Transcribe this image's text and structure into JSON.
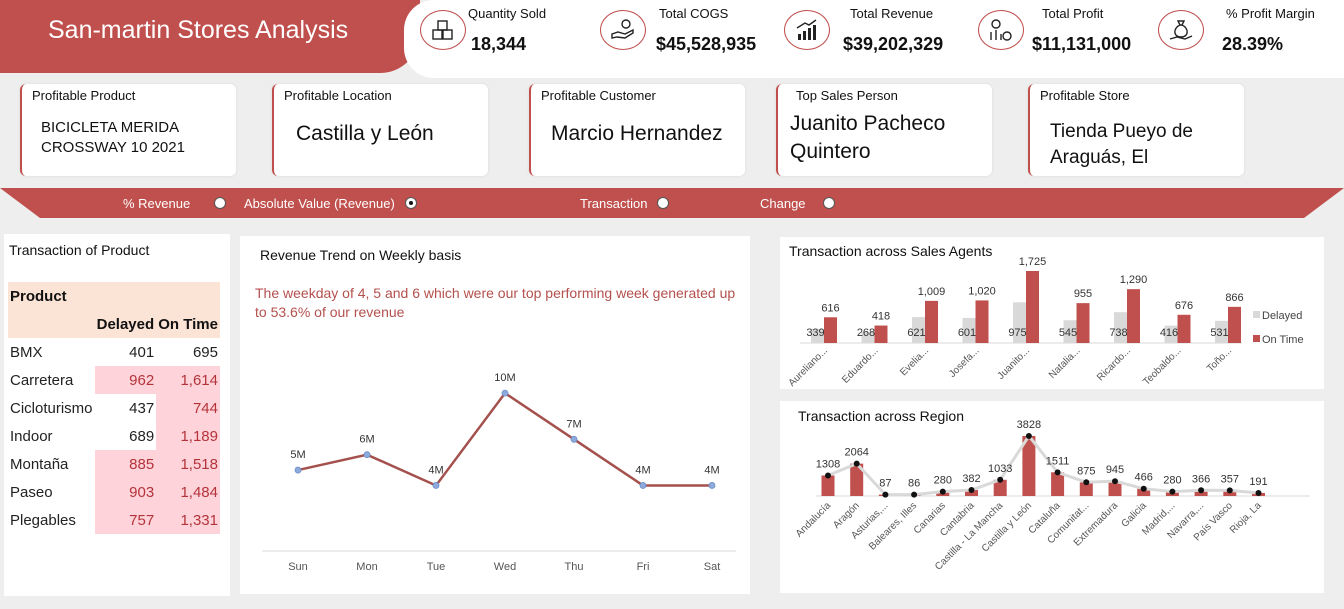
{
  "header": {
    "title": "San-martin Stores Analysis",
    "kpis": [
      {
        "label": "Quantity Sold",
        "value": "18,344",
        "icon": "boxes-icon"
      },
      {
        "label": "Total COGS",
        "value": "$45,528,935",
        "icon": "hand-coins-icon"
      },
      {
        "label": "Total Revenue",
        "value": "$39,202,329",
        "icon": "growth-chart-icon"
      },
      {
        "label": "Total Profit",
        "value": "$11,131,000",
        "icon": "profit-chart-icon"
      },
      {
        "label": "% Profit Margin",
        "value": "28.39%",
        "icon": "money-bag-icon"
      }
    ]
  },
  "cards": [
    {
      "label": "Profitable Product",
      "value": "BICICLETA MERIDA CROSSWAY 10 2021"
    },
    {
      "label": "Profitable Location",
      "value": "Castilla y León"
    },
    {
      "label": "Profitable Customer",
      "value": "Marcio Hernandez"
    },
    {
      "label": "Top Sales Person",
      "value": "Juanito Pacheco Quintero"
    },
    {
      "label": "Profitable Store",
      "value": "Tienda Pueyo de Araguás, El"
    }
  ],
  "toggle": {
    "options": [
      "% Revenue",
      "Absolute Value (Revenue)",
      "Transaction",
      "Change"
    ],
    "selected": "Absolute Value (Revenue)"
  },
  "product_table": {
    "title": "Transaction of Product",
    "header": "Product",
    "columns": [
      "Delayed",
      "On Time"
    ],
    "rows": [
      {
        "name": "BMX",
        "delayed": "401",
        "ontime": "695"
      },
      {
        "name": "Carretera",
        "delayed": "962",
        "ontime": "1,614"
      },
      {
        "name": "Cicloturismo",
        "delayed": "437",
        "ontime": "744"
      },
      {
        "name": "Indoor",
        "delayed": "689",
        "ontime": "1,189"
      },
      {
        "name": "Montaña",
        "delayed": "885",
        "ontime": "1,518"
      },
      {
        "name": "Paseo",
        "delayed": "903",
        "ontime": "1,484"
      },
      {
        "name": "Plegables",
        "delayed": "757",
        "ontime": "1,331"
      }
    ]
  },
  "weekly": {
    "title": "Revenue Trend on Weekly basis",
    "note": "The weekday of 4, 5 and 6  which were our top performing week generated up to 53.6% of our revenue"
  },
  "chart_data": [
    {
      "type": "line",
      "title": "Revenue Trend on Weekly basis",
      "categories": [
        "Sun",
        "Mon",
        "Tue",
        "Wed",
        "Thu",
        "Fri",
        "Sat"
      ],
      "values": [
        5,
        6,
        4,
        10,
        7,
        4,
        4
      ],
      "labels": [
        "5M",
        "6M",
        "4M",
        "10M",
        "7M",
        "4M",
        "4M"
      ],
      "color": "#a4504d",
      "marker": "#8eaadc"
    },
    {
      "type": "bar",
      "title": "Transaction across Sales Agents",
      "categories": [
        "Aureliano...",
        "Eduardo...",
        "Evelia...",
        "Josefa...",
        "Juanito...",
        "Natalia...",
        "Ricardo...",
        "Teobaldo...",
        "Toño..."
      ],
      "series": [
        {
          "name": "Delayed",
          "values": [
            339,
            268,
            621,
            601,
            975,
            545,
            738,
            416,
            531
          ],
          "color": "#d9d9d9"
        },
        {
          "name": "On Time",
          "values": [
            616,
            418,
            1009,
            1020,
            1725,
            955,
            1290,
            676,
            866
          ],
          "color": "#c0504d"
        }
      ],
      "delayed_labels": [
        "339",
        "268",
        "621",
        "601",
        "975",
        "545",
        "738",
        "416",
        "531"
      ],
      "ontime_labels": [
        "616",
        "418",
        "1,009",
        "1,020",
        "1,725",
        "955",
        "1,290",
        "676",
        "866"
      ],
      "legend": "right"
    },
    {
      "type": "bar",
      "title": "Transaction across Region",
      "categories": [
        "Andalucía",
        "Aragón",
        "Asturias,...",
        "Baleares, Illes",
        "Canarias",
        "Cantabria",
        "Castilla - La Mancha",
        "Castilla y León",
        "Cataluña",
        "Comunitat...",
        "Extremadura",
        "Galicia",
        "Madrid,...",
        "Navarra,...",
        "País Vasco",
        "Rioja, La"
      ],
      "values": [
        1308,
        2064,
        87,
        86,
        280,
        382,
        1033,
        3828,
        1511,
        875,
        945,
        466,
        280,
        366,
        357,
        191
      ],
      "bar_color": "#c0504d",
      "line_color": "#d9d9d9"
    }
  ]
}
